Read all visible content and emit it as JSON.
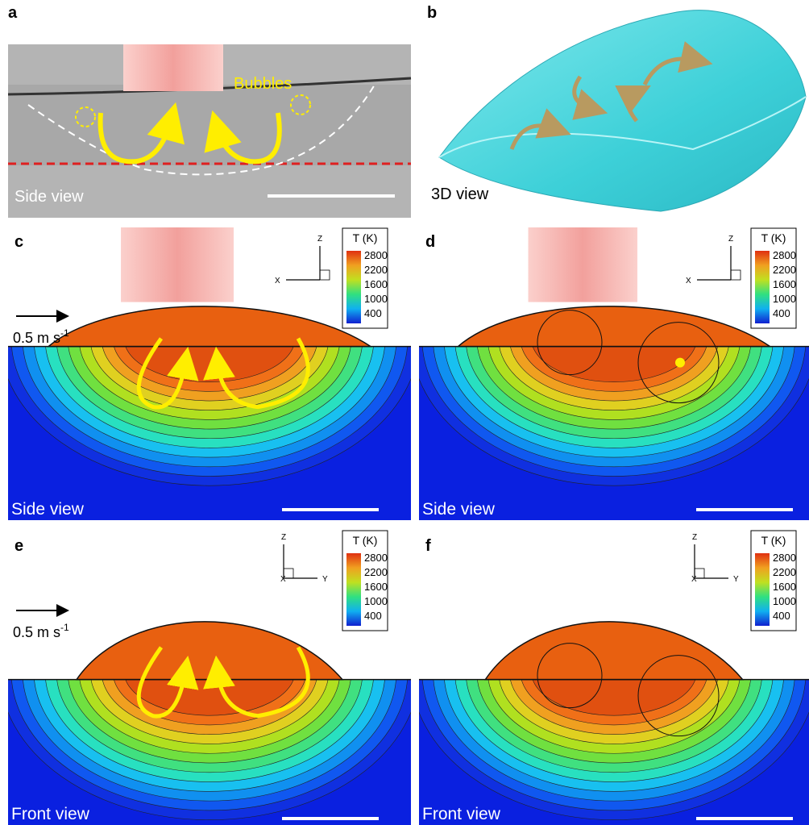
{
  "panels": [
    {
      "label": "a",
      "view": "Side view",
      "annotation": "Bubbles"
    },
    {
      "label": "b",
      "view": "3D view"
    },
    {
      "label": "c",
      "view": "Side view",
      "velocity": {
        "text": "0.5 m s",
        "exponent": "-1"
      },
      "axes": [
        "Z",
        "X"
      ],
      "legend": {
        "title": "T (K)",
        "ticks": [
          2800,
          2200,
          1600,
          1000,
          400
        ]
      }
    },
    {
      "label": "d",
      "view": "Side view",
      "axes": [
        "Z",
        "X"
      ],
      "legend": {
        "title": "T (K)",
        "ticks": [
          2800,
          2200,
          1600,
          1000,
          400
        ]
      }
    },
    {
      "label": "e",
      "view": "Front view",
      "velocity": {
        "text": "0.5 m s",
        "exponent": "-1"
      },
      "axes": [
        "Z",
        "X",
        "Y"
      ],
      "legend": {
        "title": "T (K)",
        "ticks": [
          2800,
          2200,
          1600,
          1000,
          400
        ]
      }
    },
    {
      "label": "f",
      "view": "Front view",
      "axes": [
        "Z",
        "X",
        "Y"
      ],
      "legend": {
        "title": "T (K)",
        "ticks": [
          2800,
          2200,
          1600,
          1000,
          400
        ]
      }
    }
  ]
}
